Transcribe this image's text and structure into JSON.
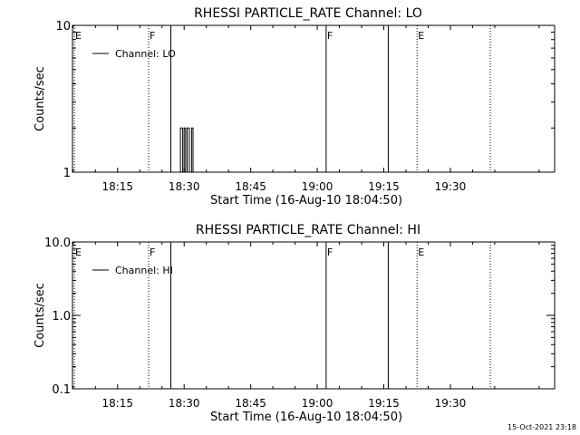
{
  "footer": {
    "timestamp": "15-Oct-2021 23:18"
  },
  "chart_data": [
    {
      "type": "line",
      "title": "RHESSI PARTICLE_RATE Channel: LO",
      "xlabel": "Start Time (16-Aug-10 18:04:50)",
      "ylabel": "Counts/sec",
      "yscale": "log",
      "ylim": [
        1,
        10
      ],
      "xlim": [
        "18:04:50",
        "19:53:30"
      ],
      "y_ticks": [
        {
          "value": 1,
          "label": "1"
        },
        {
          "value": 10,
          "label": "10"
        }
      ],
      "x_ticks": [
        {
          "time": "18:15",
          "label": "18:15"
        },
        {
          "time": "18:30",
          "label": "18:30"
        },
        {
          "time": "18:45",
          "label": "18:45"
        },
        {
          "time": "19:00",
          "label": "19:00"
        },
        {
          "time": "19:15",
          "label": "19:15"
        },
        {
          "time": "19:30",
          "label": "19:30"
        }
      ],
      "legend": {
        "label": "Channel: LO",
        "placement": "top-left"
      },
      "grid": false,
      "markers": [
        {
          "time": "18:05:15",
          "style": "dotted",
          "label": "E"
        },
        {
          "time": "18:22:00",
          "style": "dotted",
          "label": "F"
        },
        {
          "time": "18:27:00",
          "style": "solid",
          "label": ""
        },
        {
          "time": "19:02:00",
          "style": "solid",
          "label": "F"
        },
        {
          "time": "19:16:00",
          "style": "solid",
          "label": ""
        },
        {
          "time": "19:22:30",
          "style": "dotted",
          "label": "E"
        },
        {
          "time": "19:39:00",
          "style": "dotted",
          "label": ""
        }
      ],
      "series": [
        {
          "x": [
            "18:29:10",
            "18:29:10",
            "18:29:40",
            "18:29:40",
            "18:30:00",
            "18:30:00",
            "18:30:20",
            "18:30:20",
            "18:30:40",
            "18:30:40",
            "18:31:10",
            "18:31:10",
            "18:31:40",
            "18:31:40",
            "18:32:00",
            "18:32:00",
            "18:32:20",
            "18:32:20"
          ],
          "y": [
            1,
            2,
            2,
            1,
            1,
            2,
            2,
            1,
            1,
            2,
            2,
            1,
            1,
            2,
            2,
            1,
            1,
            1
          ]
        }
      ]
    },
    {
      "type": "line",
      "title": "RHESSI PARTICLE_RATE Channel: HI",
      "xlabel": "Start Time (16-Aug-10 18:04:50)",
      "ylabel": "Counts/sec",
      "yscale": "log",
      "ylim": [
        0.1,
        10
      ],
      "xlim": [
        "18:04:50",
        "19:53:30"
      ],
      "y_ticks": [
        {
          "value": 0.1,
          "label": "0.1"
        },
        {
          "value": 1,
          "label": "1.0"
        },
        {
          "value": 10,
          "label": "10.0"
        }
      ],
      "x_ticks": [
        {
          "time": "18:15",
          "label": "18:15"
        },
        {
          "time": "18:30",
          "label": "18:30"
        },
        {
          "time": "18:45",
          "label": "18:45"
        },
        {
          "time": "19:00",
          "label": "19:00"
        },
        {
          "time": "19:15",
          "label": "19:15"
        },
        {
          "time": "19:30",
          "label": "19:30"
        }
      ],
      "legend": {
        "label": "Channel: HI",
        "placement": "top-left"
      },
      "grid": false,
      "markers": [
        {
          "time": "18:05:15",
          "style": "dotted",
          "label": "E"
        },
        {
          "time": "18:22:00",
          "style": "dotted",
          "label": "F"
        },
        {
          "time": "18:27:00",
          "style": "solid",
          "label": ""
        },
        {
          "time": "19:02:00",
          "style": "solid",
          "label": "F"
        },
        {
          "time": "19:16:00",
          "style": "solid",
          "label": ""
        },
        {
          "time": "19:22:30",
          "style": "dotted",
          "label": "E"
        },
        {
          "time": "19:39:00",
          "style": "dotted",
          "label": ""
        }
      ],
      "series": []
    }
  ]
}
